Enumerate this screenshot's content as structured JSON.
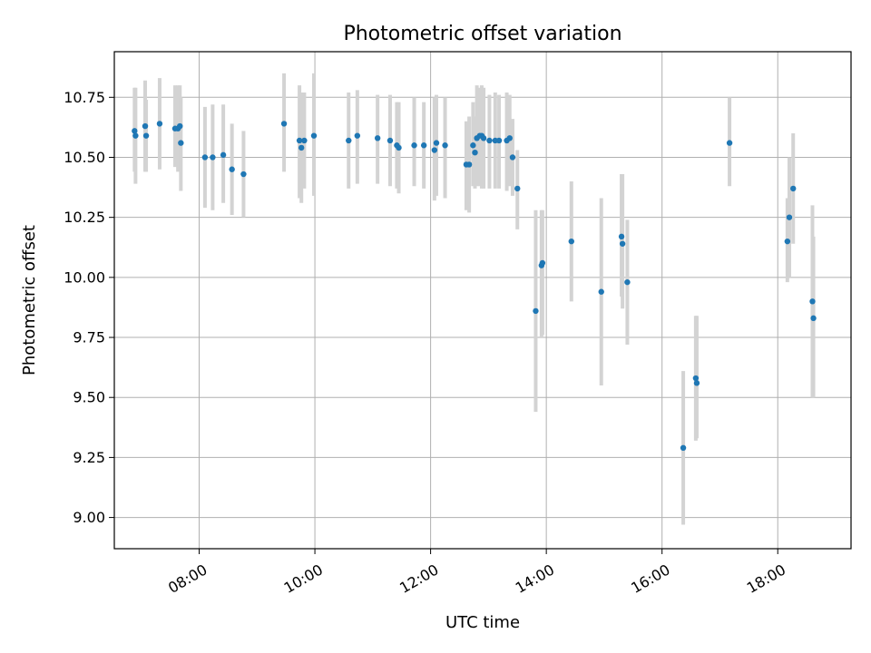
{
  "chart_data": {
    "type": "scatter",
    "title": "Photometric offset variation",
    "xlabel": "UTC time",
    "ylabel": "Photometric offset",
    "x_tick_labels": [
      "08:00",
      "10:00",
      "12:00",
      "14:00",
      "16:00",
      "18:00"
    ],
    "y_tick_labels": [
      "9.00",
      "9.25",
      "9.50",
      "9.75",
      "10.00",
      "10.25",
      "10.50",
      "10.75"
    ],
    "xlim": [
      "06:32",
      "19:16"
    ],
    "ylim": [
      8.87,
      10.94
    ],
    "grid": true,
    "colors": {
      "point": "#1f77b4",
      "errorbar": "#d3d3d3",
      "grid": "#b0b0b0"
    },
    "series": [
      {
        "x": [
          "06:53",
          "06:54",
          "07:04",
          "07:05",
          "07:19",
          "07:35",
          "07:38",
          "07:40",
          "07:41",
          "08:06",
          "08:14",
          "08:25",
          "08:34",
          "08:46",
          "09:28",
          "09:44",
          "09:46",
          "09:49",
          "09:59",
          "10:35",
          "10:44",
          "11:05",
          "11:18",
          "11:25",
          "11:27",
          "11:43",
          "11:53",
          "12:04",
          "12:06",
          "12:15",
          "12:37",
          "12:40",
          "12:44",
          "12:46",
          "12:48",
          "12:51",
          "12:53",
          "12:55",
          "13:01",
          "13:07",
          "13:11",
          "13:19",
          "13:22",
          "13:25",
          "13:30",
          "13:49",
          "13:55",
          "13:56",
          "14:26",
          "14:57",
          "15:18",
          "15:19",
          "15:24",
          "16:22",
          "16:35",
          "16:36",
          "17:10",
          "18:10",
          "18:12",
          "18:16",
          "18:36",
          "18:37"
        ],
        "y": [
          10.61,
          10.59,
          10.63,
          10.59,
          10.64,
          10.62,
          10.62,
          10.63,
          10.56,
          10.5,
          10.5,
          10.51,
          10.45,
          10.43,
          10.64,
          10.57,
          10.54,
          10.57,
          10.59,
          10.57,
          10.59,
          10.58,
          10.57,
          10.55,
          10.54,
          10.55,
          10.55,
          10.53,
          10.56,
          10.55,
          10.47,
          10.47,
          10.55,
          10.52,
          10.58,
          10.59,
          10.59,
          10.58,
          10.57,
          10.57,
          10.57,
          10.57,
          10.58,
          10.5,
          10.37,
          9.86,
          10.05,
          10.06,
          10.15,
          9.94,
          10.17,
          10.14,
          9.98,
          9.29,
          9.58,
          9.56,
          10.56,
          10.15,
          10.25,
          10.37,
          9.9,
          9.83
        ],
        "yerr_low": [
          0.17,
          0.2,
          0.19,
          0.15,
          0.19,
          0.16,
          0.18,
          0.15,
          0.2,
          0.21,
          0.22,
          0.2,
          0.19,
          0.18,
          0.2,
          0.24,
          0.23,
          0.2,
          0.25,
          0.2,
          0.2,
          0.19,
          0.19,
          0.18,
          0.19,
          0.17,
          0.18,
          0.21,
          0.22,
          0.22,
          0.19,
          0.2,
          0.17,
          0.15,
          0.2,
          0.21,
          0.22,
          0.21,
          0.2,
          0.2,
          0.2,
          0.21,
          0.2,
          0.16,
          0.17,
          0.42,
          0.3,
          0.3,
          0.25,
          0.39,
          0.25,
          0.27,
          0.26,
          0.32,
          0.26,
          0.23,
          0.18,
          0.17,
          0.25,
          0.23,
          0.4,
          0.33
        ],
        "yerr_high": [
          0.18,
          0.2,
          0.19,
          0.15,
          0.19,
          0.18,
          0.18,
          0.17,
          0.19,
          0.21,
          0.22,
          0.21,
          0.19,
          0.18,
          0.21,
          0.23,
          0.23,
          0.2,
          0.26,
          0.2,
          0.19,
          0.18,
          0.19,
          0.18,
          0.19,
          0.2,
          0.18,
          0.22,
          0.2,
          0.2,
          0.18,
          0.2,
          0.18,
          0.15,
          0.22,
          0.2,
          0.21,
          0.21,
          0.19,
          0.2,
          0.19,
          0.2,
          0.18,
          0.16,
          0.16,
          0.42,
          0.23,
          0.22,
          0.25,
          0.39,
          0.26,
          0.29,
          0.26,
          0.32,
          0.26,
          0.28,
          0.19,
          0.18,
          0.25,
          0.23,
          0.4,
          0.34
        ]
      }
    ]
  }
}
